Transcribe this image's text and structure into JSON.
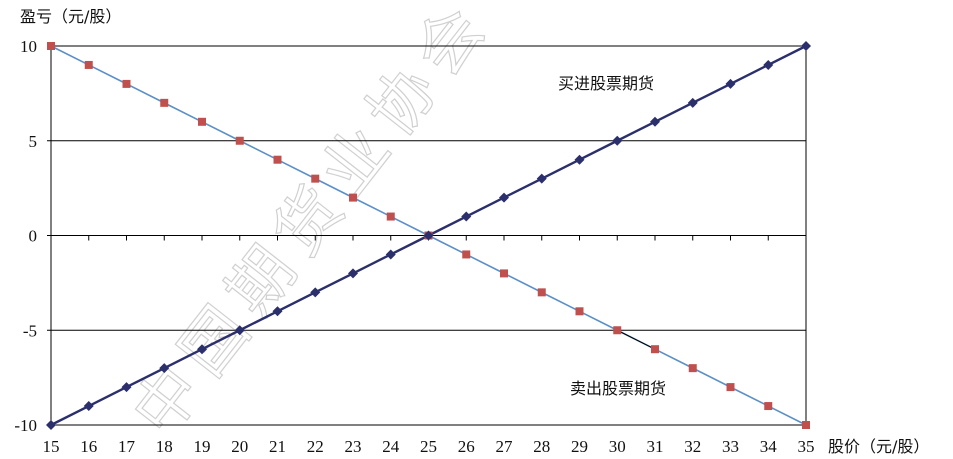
{
  "chart_data": {
    "type": "line",
    "title": "",
    "ylabel": "盈亏（元/股）",
    "xlabel": "股价（元/股）",
    "xlim": [
      15,
      35
    ],
    "ylim": [
      -10,
      10
    ],
    "x_ticks": [
      15,
      16,
      17,
      18,
      19,
      20,
      21,
      22,
      23,
      24,
      25,
      26,
      27,
      28,
      29,
      30,
      31,
      32,
      33,
      34,
      35
    ],
    "y_ticks": [
      10,
      5,
      0,
      -5,
      -10
    ],
    "y_tick_labels": [
      "10",
      "5",
      "0",
      "-5",
      "-10"
    ],
    "grid": "horizontal",
    "x": [
      15,
      16,
      17,
      18,
      19,
      20,
      21,
      22,
      23,
      24,
      25,
      26,
      27,
      28,
      29,
      30,
      31,
      32,
      33,
      34,
      35
    ],
    "series": [
      {
        "name": "买进股票期货",
        "color": "#2b2f6b",
        "marker": "diamond",
        "values": [
          -10,
          -9,
          -8,
          -7,
          -6,
          -5,
          -4,
          -3,
          -2,
          -1,
          0,
          1,
          2,
          3,
          4,
          5,
          6,
          7,
          8,
          9,
          10
        ]
      },
      {
        "name": "卖出股票期货",
        "color": "#5b8fc7",
        "marker_color": "#c0504d",
        "marker": "square",
        "values": [
          10,
          9,
          8,
          7,
          6,
          5,
          4,
          3,
          2,
          1,
          0,
          -1,
          -2,
          -3,
          -4,
          -5,
          -6,
          -7,
          -8,
          -9,
          -10
        ]
      }
    ],
    "annotations": [
      {
        "text": "买进股票期货",
        "series": 0
      },
      {
        "text": "卖出股票期货",
        "series": 1
      }
    ],
    "watermark": "中国期货业协会"
  }
}
